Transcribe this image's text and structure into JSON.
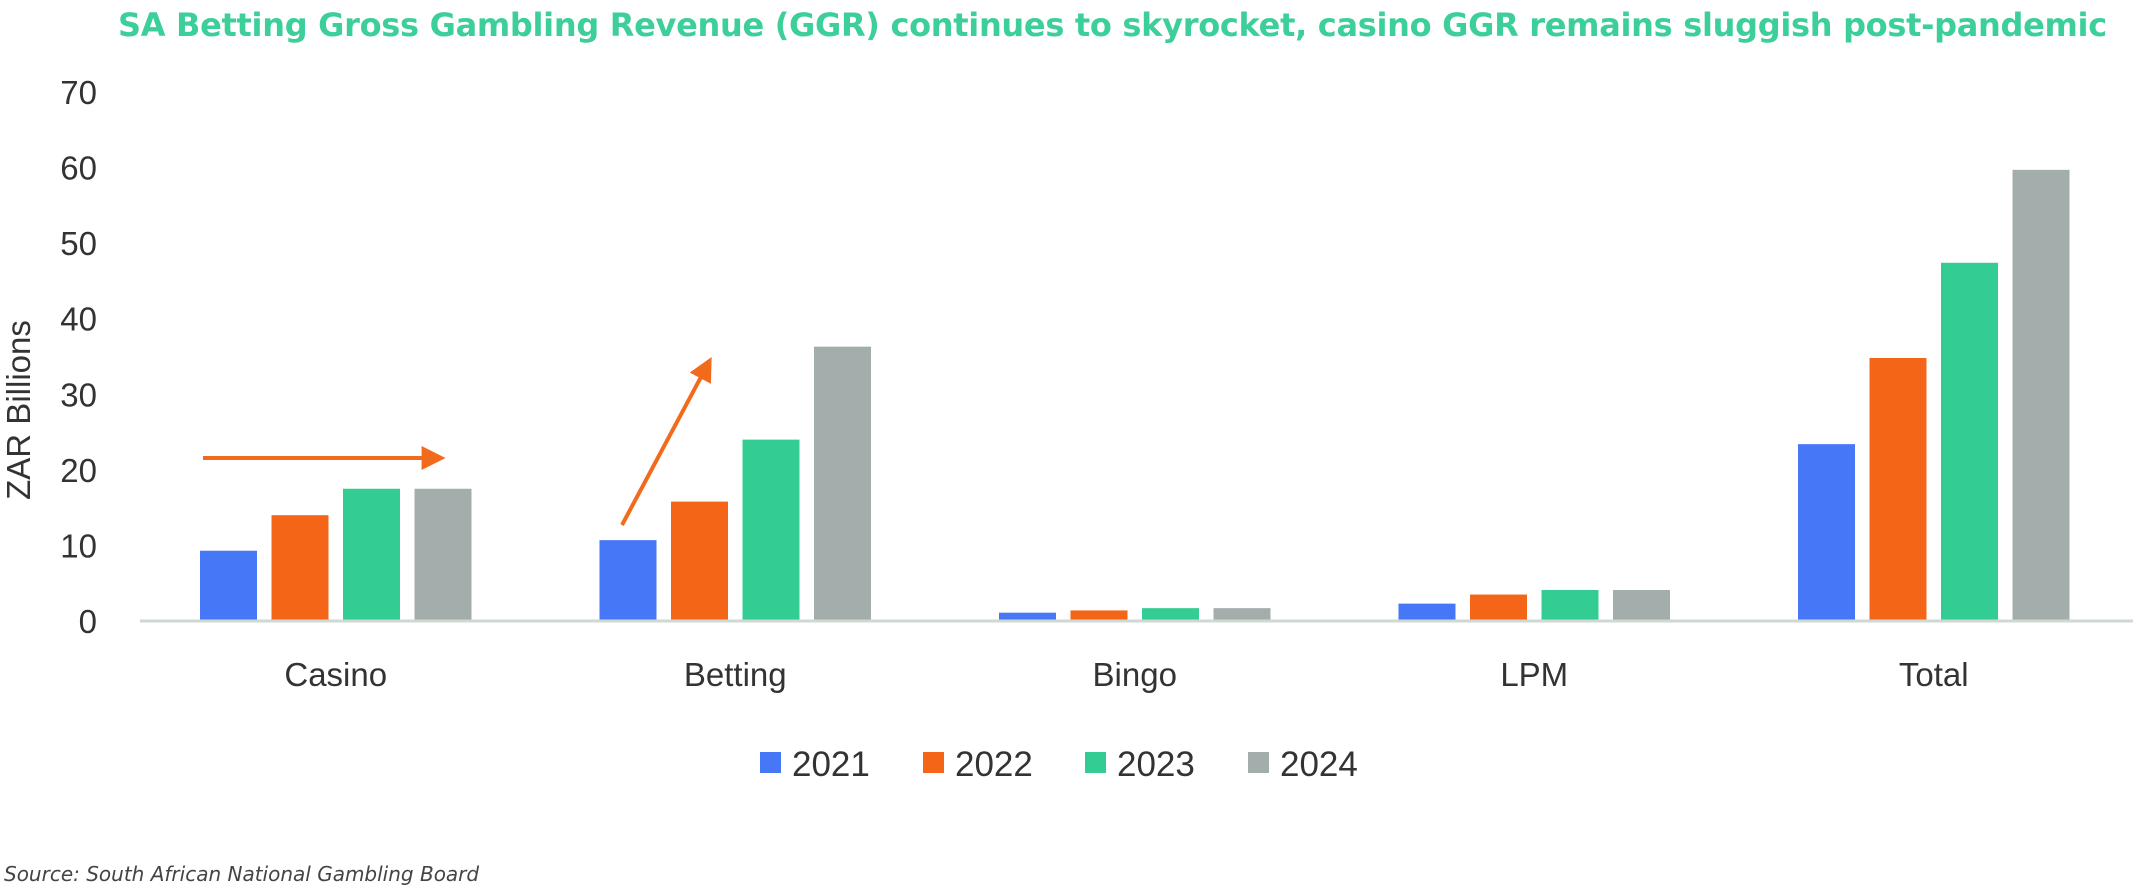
{
  "header": {
    "title": "SA Betting Gross Gambling Revenue (GGR) continues to skyrocket, casino GGR remains sluggish post-pandemic"
  },
  "footer": {
    "source": "Source: South African National Gambling Board"
  },
  "colors": {
    "title": "#3dcf9a",
    "arrow": "#f26b1d",
    "axis_line": "#cfd8d3"
  },
  "chart_data": {
    "type": "bar",
    "title": "SA Betting Gross Gambling Revenue (GGR) continues to skyrocket, casino GGR remains sluggish post-pandemic",
    "xlabel": "",
    "ylabel": "ZAR Billions",
    "ylim": [
      0,
      70
    ],
    "yticks": [
      0,
      10,
      20,
      30,
      40,
      50,
      60,
      70
    ],
    "categories": [
      "Casino",
      "Betting",
      "Bingo",
      "LPM",
      "Total"
    ],
    "series": [
      {
        "name": "2021",
        "color": "#4677f6",
        "values": [
          9.3,
          10.7,
          1.1,
          2.3,
          23.4
        ]
      },
      {
        "name": "2022",
        "color": "#f56518",
        "values": [
          14.0,
          15.8,
          1.4,
          3.5,
          34.8
        ]
      },
      {
        "name": "2023",
        "color": "#33cc92",
        "values": [
          17.5,
          24.0,
          1.7,
          4.1,
          47.4
        ]
      },
      {
        "name": "2024",
        "color": "#a3adac",
        "values": [
          17.5,
          36.3,
          1.7,
          4.1,
          59.7
        ]
      }
    ],
    "legend_position": "bottom",
    "grid": false,
    "annotations": [
      {
        "type": "arrow",
        "category": "Casino",
        "direction": "flat"
      },
      {
        "type": "arrow",
        "category": "Betting",
        "direction": "rising"
      }
    ]
  }
}
